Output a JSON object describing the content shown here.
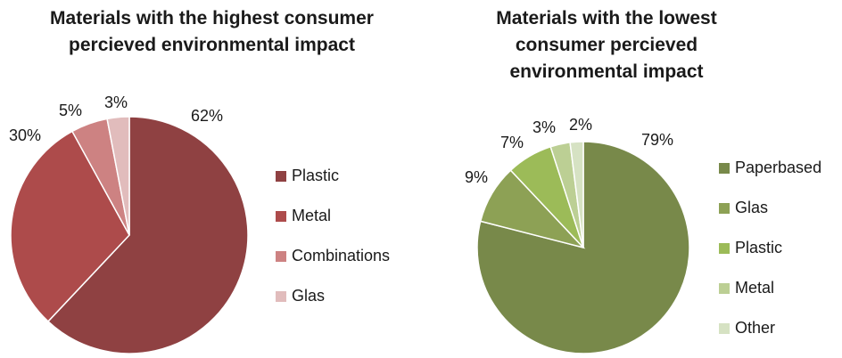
{
  "chart_data": [
    {
      "type": "pie",
      "title": "Materials with the highest consumer percieved environmental impact",
      "title_lines": [
        "Materials with the highest consumer",
        "percieved environmental impact"
      ],
      "slices": [
        {
          "label": "Plastic",
          "value": 62,
          "pct_label": "62%",
          "color": "#8f4142"
        },
        {
          "label": "Metal",
          "value": 30,
          "pct_label": "30%",
          "color": "#ad4b4b"
        },
        {
          "label": "Combinations",
          "value": 5,
          "pct_label": "5%",
          "color": "#cd8282"
        },
        {
          "label": "Glas",
          "value": 3,
          "pct_label": "3%",
          "color": "#e1bcbc"
        }
      ],
      "legend_position": "right",
      "start_angle": "12 o'clock",
      "direction": "clockwise"
    },
    {
      "type": "pie",
      "title": "Materials with the lowest consumer percieved environmental impact",
      "title_lines": [
        "Materials with the lowest",
        "consumer percieved",
        "environmental impact"
      ],
      "slices": [
        {
          "label": "Paperbased",
          "value": 79,
          "pct_label": "79%",
          "color": "#78894a"
        },
        {
          "label": "Glas",
          "value": 9,
          "pct_label": "9%",
          "color": "#8da155"
        },
        {
          "label": "Plastic",
          "value": 7,
          "pct_label": "7%",
          "color": "#9cbb58"
        },
        {
          "label": "Metal",
          "value": 3,
          "pct_label": "3%",
          "color": "#bccf94"
        },
        {
          "label": "Other",
          "value": 2,
          "pct_label": "2%",
          "color": "#d6e2c3"
        }
      ],
      "legend_position": "right",
      "start_angle": "12 o'clock",
      "direction": "clockwise"
    }
  ]
}
